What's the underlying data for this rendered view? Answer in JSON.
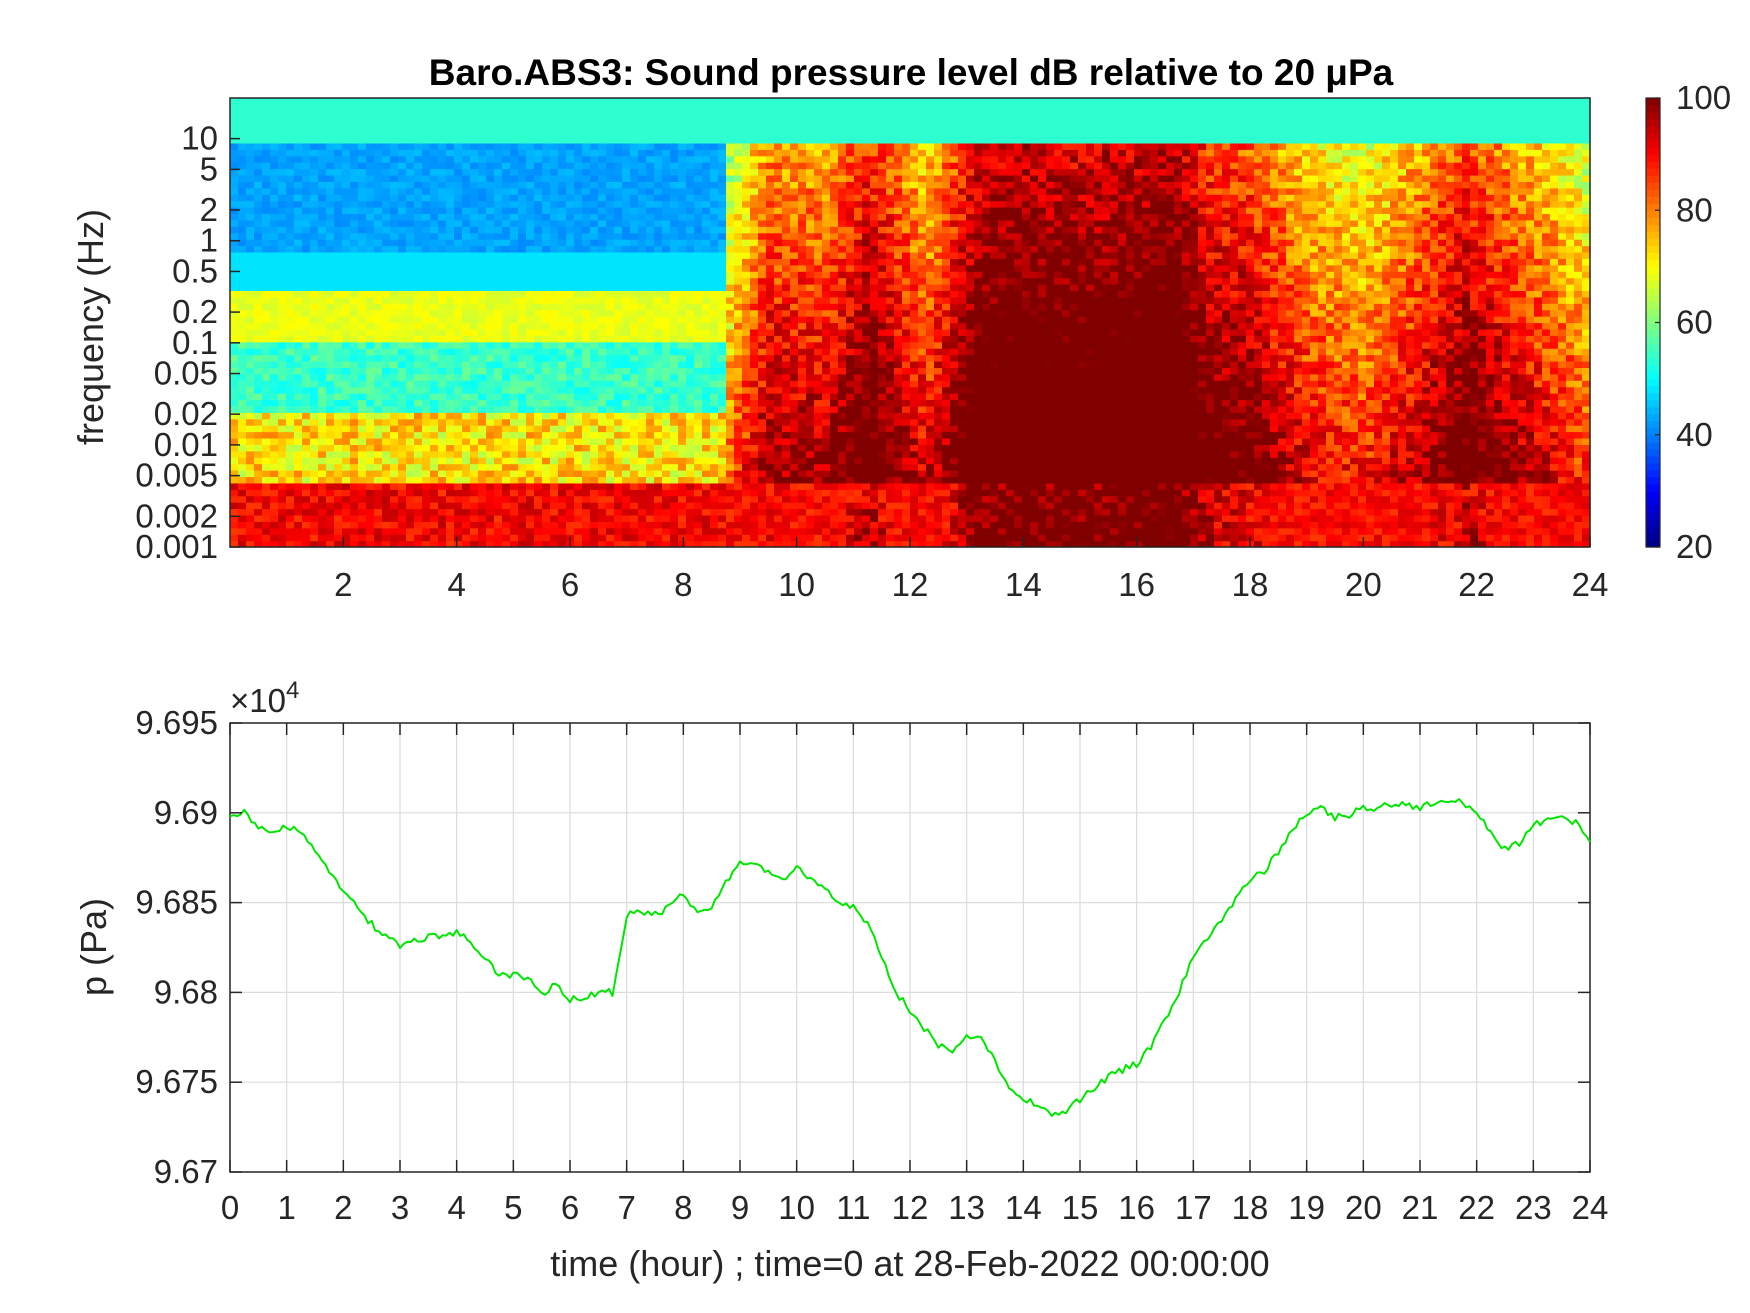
{
  "chart_data": [
    {
      "type": "heatmap",
      "title": "Baro.ABS3: Sound pressure level dB relative to 20 μPa",
      "xlabel": "",
      "ylabel": "frequency (Hz)",
      "xlim": [
        0,
        24
      ],
      "x_ticks": [
        2,
        4,
        6,
        8,
        10,
        12,
        14,
        16,
        18,
        20,
        22,
        24
      ],
      "y_scale": "log",
      "ylim": [
        0.001,
        25
      ],
      "y_ticks": [
        0.001,
        0.002,
        0.005,
        0.01,
        0.02,
        0.05,
        0.1,
        0.2,
        0.5,
        1,
        2,
        5,
        10
      ],
      "y_tick_labels": [
        "0.001",
        "0.002",
        "0.005",
        "0.01",
        "0.02",
        "0.05",
        "0.1",
        "0.2",
        "0.5",
        "1",
        "2",
        "5",
        "10"
      ],
      "colormap": "jet",
      "colorbar": {
        "range": [
          20,
          100
        ],
        "ticks": [
          20,
          40,
          60,
          80,
          100
        ],
        "placement": "right"
      },
      "grid": false,
      "time_profile_hours": [
        0,
        1,
        2,
        3,
        4,
        5,
        6,
        7,
        8,
        8.8,
        9.5,
        10.5,
        11.3,
        12.3,
        13.2,
        14,
        15,
        16,
        16.6,
        17.3,
        18,
        19,
        20,
        21,
        21.8,
        22.5,
        23.3,
        24
      ],
      "time_profile_intensity": [
        0.15,
        0.15,
        0.15,
        0.15,
        0.15,
        0.15,
        0.15,
        0.15,
        0.15,
        0.2,
        0.6,
        0.55,
        0.8,
        0.45,
        0.9,
        0.95,
        0.9,
        0.95,
        1.0,
        0.75,
        0.7,
        0.45,
        0.35,
        0.55,
        0.75,
        0.6,
        0.45,
        0.3
      ]
    },
    {
      "type": "line",
      "title": "",
      "xlabel": "time (hour) ; time=0 at 28-Feb-2022 00:00:00",
      "ylabel": "p (Pa)",
      "xlim": [
        0,
        24
      ],
      "ylim": [
        96700,
        96950
      ],
      "x_ticks": [
        0,
        1,
        2,
        3,
        4,
        5,
        6,
        7,
        8,
        9,
        10,
        11,
        12,
        13,
        14,
        15,
        16,
        17,
        18,
        19,
        20,
        21,
        22,
        23,
        24
      ],
      "y_ticks": [
        96700,
        96750,
        96800,
        96850,
        96900,
        96950
      ],
      "y_tick_labels": [
        "9.67",
        "9.675",
        "9.68",
        "9.685",
        "9.69",
        "9.695"
      ],
      "y_exponent_label": "×10",
      "y_exponent_power": "4",
      "grid": true,
      "series": [
        {
          "color": "#00e600",
          "x": [
            0,
            0.25,
            0.5,
            0.75,
            1,
            1.25,
            1.5,
            1.75,
            2,
            2.25,
            2.5,
            2.75,
            3,
            3.25,
            3.5,
            3.75,
            4,
            4.25,
            4.5,
            4.75,
            5,
            5.25,
            5.5,
            5.75,
            6,
            6.25,
            6.5,
            6.75,
            7,
            7.25,
            7.5,
            7.75,
            8,
            8.25,
            8.5,
            8.75,
            9,
            9.25,
            9.5,
            9.75,
            10,
            10.25,
            10.5,
            10.75,
            11,
            11.25,
            11.5,
            11.75,
            12,
            12.25,
            12.5,
            12.75,
            13,
            13.25,
            13.5,
            13.75,
            14,
            14.25,
            14.5,
            14.75,
            15,
            15.25,
            15.5,
            15.75,
            16,
            16.25,
            16.5,
            16.75,
            17,
            17.25,
            17.5,
            17.75,
            18,
            18.25,
            18.5,
            18.75,
            19,
            19.25,
            19.5,
            19.75,
            20,
            20.25,
            20.5,
            20.75,
            21,
            21.25,
            21.5,
            21.75,
            22,
            22.25,
            22.5,
            22.75,
            23,
            23.25,
            23.5,
            23.75,
            24
          ],
          "y": [
            96900,
            96900,
            96893,
            96889,
            96892,
            96889,
            96878,
            96868,
            96857,
            96847,
            96838,
            96831,
            96826,
            96828,
            96831,
            96832,
            96833,
            96828,
            96818,
            96810,
            96810,
            96808,
            96799,
            96805,
            96796,
            96797,
            96800,
            96800,
            96843,
            96845,
            96843,
            96848,
            96855,
            96845,
            96848,
            96862,
            96871,
            96870,
            96868,
            96862,
            96870,
            96862,
            96858,
            96851,
            96848,
            96838,
            96820,
            96800,
            96790,
            96780,
            96770,
            96768,
            96775,
            96775,
            96763,
            96745,
            96740,
            96738,
            96732,
            96734,
            96740,
            96747,
            96753,
            96757,
            96760,
            96770,
            96785,
            96800,
            96820,
            96830,
            96840,
            96853,
            96863,
            96868,
            96878,
            96890,
            96900,
            96903,
            96897,
            96899,
            96903,
            96903,
            96905,
            96905,
            96903,
            96905,
            96906,
            96906,
            96900,
            96888,
            96880,
            96883,
            96893,
            96896,
            96897,
            96895,
            96882
          ]
        }
      ]
    }
  ]
}
